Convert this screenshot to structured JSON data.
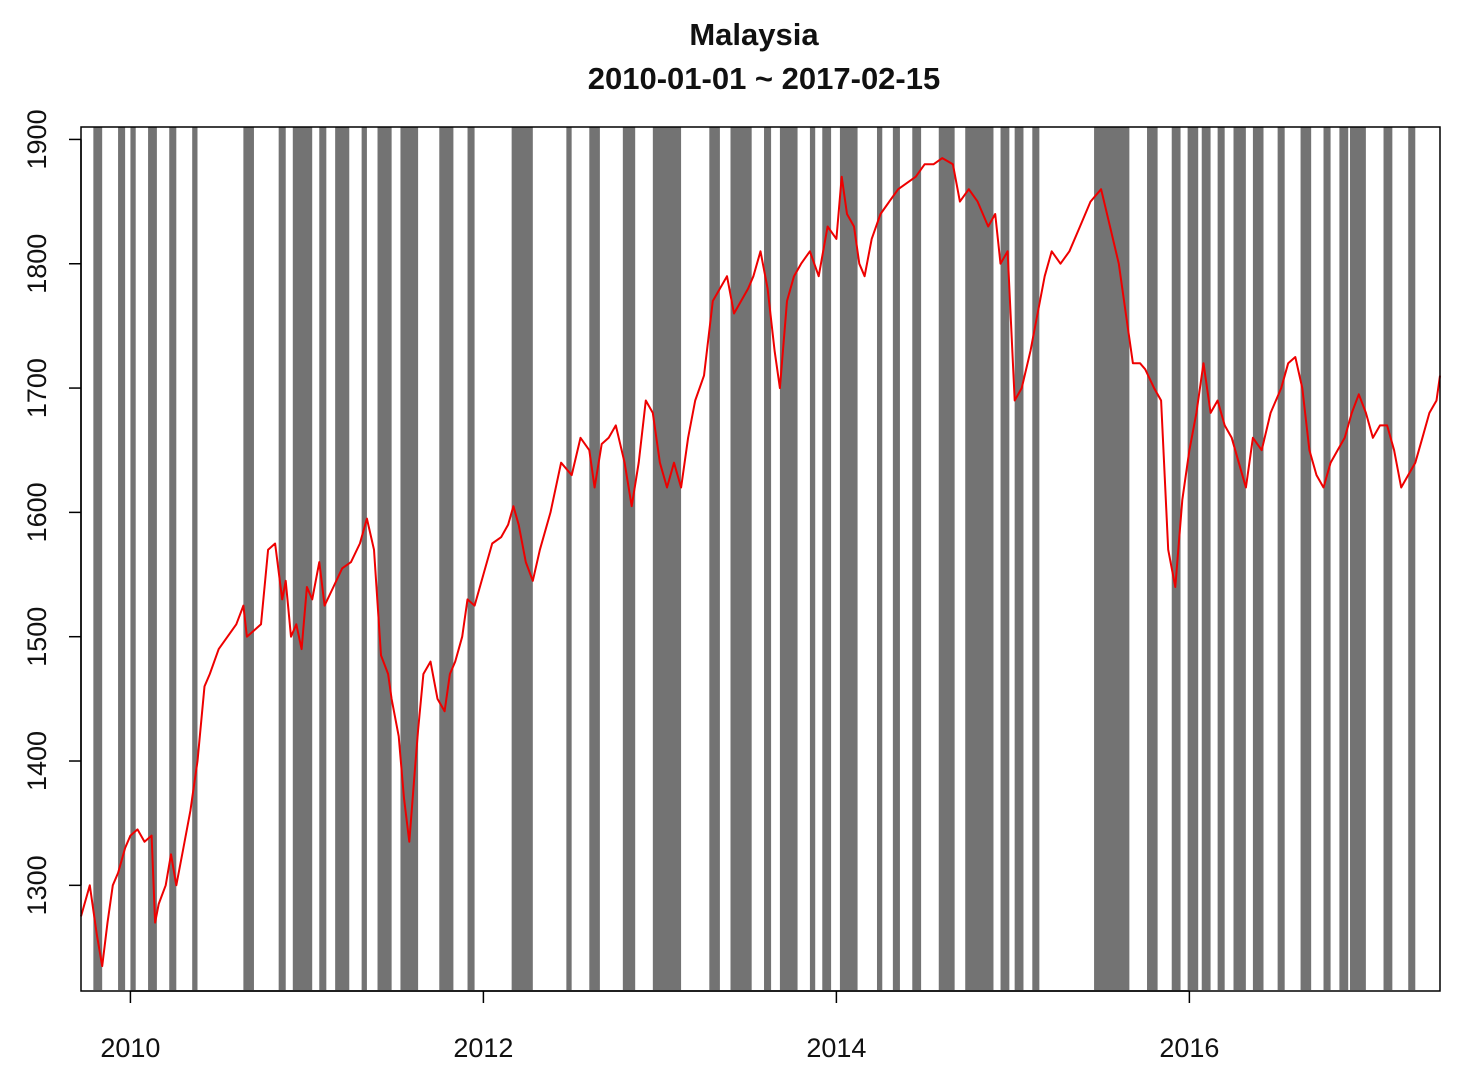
{
  "chart_data": {
    "type": "line",
    "title": "Malaysia",
    "subtitle": "2010-01-01 ~ 2017-02-15",
    "xlabel": "",
    "ylabel": "",
    "x_ticks": [
      "2010",
      "2012",
      "2014",
      "2016"
    ],
    "x_tick_values": [
      2010.0,
      2012.0,
      2014.0,
      2016.0
    ],
    "y_ticks": [
      1300,
      1400,
      1500,
      1600,
      1700,
      1800,
      1900
    ],
    "xlim": [
      2009.72,
      2017.42
    ],
    "ylim": [
      1215,
      1910
    ],
    "grid": false,
    "legend": "none",
    "line_color": "#ee0000",
    "band_color": "#737373",
    "shaded_periods": [
      [
        2009.79,
        2009.84
      ],
      [
        2009.93,
        2009.97
      ],
      [
        2010.0,
        2010.03
      ],
      [
        2010.1,
        2010.15
      ],
      [
        2010.22,
        2010.26
      ],
      [
        2010.35,
        2010.38
      ],
      [
        2010.64,
        2010.7
      ],
      [
        2010.84,
        2010.88
      ],
      [
        2010.92,
        2011.03
      ],
      [
        2011.07,
        2011.11
      ],
      [
        2011.16,
        2011.24
      ],
      [
        2011.31,
        2011.34
      ],
      [
        2011.4,
        2011.48
      ],
      [
        2011.53,
        2011.63
      ],
      [
        2011.75,
        2011.83
      ],
      [
        2011.91,
        2011.95
      ],
      [
        2012.16,
        2012.28
      ],
      [
        2012.47,
        2012.5
      ],
      [
        2012.6,
        2012.66
      ],
      [
        2012.79,
        2012.86
      ],
      [
        2012.96,
        2013.12
      ],
      [
        2013.28,
        2013.34
      ],
      [
        2013.4,
        2013.52
      ],
      [
        2013.59,
        2013.63
      ],
      [
        2013.68,
        2013.78
      ],
      [
        2013.85,
        2013.88
      ],
      [
        2013.92,
        2013.97
      ],
      [
        2014.02,
        2014.12
      ],
      [
        2014.23,
        2014.26
      ],
      [
        2014.32,
        2014.36
      ],
      [
        2014.43,
        2014.48
      ],
      [
        2014.58,
        2014.67
      ],
      [
        2014.73,
        2014.89
      ],
      [
        2014.93,
        2014.98
      ],
      [
        2015.01,
        2015.06
      ],
      [
        2015.11,
        2015.15
      ],
      [
        2015.46,
        2015.66
      ],
      [
        2015.76,
        2015.82
      ],
      [
        2015.9,
        2015.95
      ],
      [
        2015.99,
        2016.05
      ],
      [
        2016.07,
        2016.12
      ],
      [
        2016.16,
        2016.2
      ],
      [
        2016.25,
        2016.32
      ],
      [
        2016.36,
        2016.42
      ],
      [
        2016.5,
        2016.54
      ],
      [
        2016.63,
        2016.69
      ],
      [
        2016.76,
        2016.8
      ],
      [
        2016.85,
        2016.9
      ],
      [
        2016.91,
        2017.0
      ],
      [
        2017.1,
        2017.15
      ],
      [
        2017.24,
        2017.28
      ]
    ],
    "series": [
      {
        "x": [
          2009.72,
          2009.77,
          2009.81,
          2009.84,
          2009.87,
          2009.9,
          2009.93,
          2009.97,
          2010.0,
          2010.04,
          2010.08,
          2010.12,
          2010.14,
          2010.16,
          2010.2,
          2010.23,
          2010.26,
          2010.3,
          2010.34,
          2010.38,
          2010.42,
          2010.45,
          2010.5,
          2010.55,
          2010.6,
          2010.64,
          2010.66,
          2010.7,
          2010.74,
          2010.78,
          2010.82,
          2010.86,
          2010.88,
          2010.91,
          2010.94,
          2010.97,
          2011.0,
          2011.03,
          2011.07,
          2011.1,
          2011.15,
          2011.2,
          2011.25,
          2011.3,
          2011.34,
          2011.38,
          2011.42,
          2011.46,
          2011.48,
          2011.52,
          2011.55,
          2011.58,
          2011.61,
          2011.63,
          2011.66,
          2011.7,
          2011.74,
          2011.78,
          2011.81,
          2011.84,
          2011.88,
          2011.91,
          2011.95,
          2012.0,
          2012.05,
          2012.1,
          2012.14,
          2012.17,
          2012.2,
          2012.24,
          2012.28,
          2012.32,
          2012.38,
          2012.44,
          2012.5,
          2012.55,
          2012.6,
          2012.63,
          2012.67,
          2012.71,
          2012.75,
          2012.8,
          2012.84,
          2012.88,
          2012.92,
          2012.96,
          2013.0,
          2013.04,
          2013.08,
          2013.12,
          2013.16,
          2013.2,
          2013.25,
          2013.3,
          2013.34,
          2013.38,
          2013.42,
          2013.46,
          2013.5,
          2013.53,
          2013.57,
          2013.61,
          2013.65,
          2013.68,
          2013.72,
          2013.76,
          2013.8,
          2013.85,
          2013.9,
          2013.95,
          2014.0,
          2014.03,
          2014.06,
          2014.1,
          2014.13,
          2014.16,
          2014.2,
          2014.25,
          2014.3,
          2014.35,
          2014.4,
          2014.45,
          2014.5,
          2014.55,
          2014.6,
          2014.66,
          2014.7,
          2014.75,
          2014.8,
          2014.86,
          2014.9,
          2014.93,
          2014.97,
          2015.01,
          2015.05,
          2015.1,
          2015.14,
          2015.18,
          2015.22,
          2015.27,
          2015.32,
          2015.38,
          2015.44,
          2015.5,
          2015.55,
          2015.6,
          2015.64,
          2015.68,
          2015.72,
          2015.75,
          2015.8,
          2015.84,
          2015.88,
          2015.92,
          2015.96,
          2016.0,
          2016.04,
          2016.08,
          2016.12,
          2016.16,
          2016.2,
          2016.24,
          2016.28,
          2016.32,
          2016.36,
          2016.41,
          2016.46,
          2016.52,
          2016.56,
          2016.6,
          2016.64,
          2016.68,
          2016.72,
          2016.76,
          2016.8,
          2016.84,
          2016.88,
          2016.92,
          2016.96,
          2017.0,
          2017.04,
          2017.08,
          2017.12,
          2017.16,
          2017.2,
          2017.24,
          2017.28,
          2017.32,
          2017.36,
          2017.4,
          2017.42
        ],
        "values": [
          1275,
          1300,
          1260,
          1235,
          1270,
          1300,
          1310,
          1330,
          1340,
          1345,
          1335,
          1340,
          1270,
          1285,
          1300,
          1325,
          1300,
          1330,
          1360,
          1400,
          1460,
          1470,
          1490,
          1500,
          1510,
          1525,
          1500,
          1505,
          1510,
          1570,
          1575,
          1530,
          1545,
          1500,
          1510,
          1490,
          1540,
          1530,
          1560,
          1525,
          1540,
          1555,
          1560,
          1575,
          1595,
          1570,
          1485,
          1470,
          1450,
          1420,
          1370,
          1335,
          1390,
          1425,
          1470,
          1480,
          1450,
          1440,
          1470,
          1480,
          1500,
          1530,
          1525,
          1550,
          1575,
          1580,
          1590,
          1605,
          1590,
          1560,
          1545,
          1570,
          1600,
          1640,
          1630,
          1660,
          1650,
          1620,
          1655,
          1660,
          1670,
          1640,
          1605,
          1640,
          1690,
          1680,
          1640,
          1620,
          1640,
          1620,
          1660,
          1690,
          1710,
          1770,
          1780,
          1790,
          1760,
          1770,
          1780,
          1790,
          1810,
          1780,
          1730,
          1700,
          1770,
          1790,
          1800,
          1810,
          1790,
          1830,
          1820,
          1870,
          1840,
          1830,
          1800,
          1790,
          1820,
          1840,
          1850,
          1860,
          1865,
          1870,
          1880,
          1880,
          1885,
          1880,
          1850,
          1860,
          1850,
          1830,
          1840,
          1800,
          1810,
          1690,
          1700,
          1730,
          1760,
          1790,
          1810,
          1800,
          1810,
          1830,
          1850,
          1860,
          1830,
          1800,
          1760,
          1720,
          1720,
          1715,
          1700,
          1690,
          1570,
          1540,
          1610,
          1650,
          1680,
          1720,
          1680,
          1690,
          1670,
          1660,
          1640,
          1620,
          1660,
          1650,
          1680,
          1700,
          1720,
          1725,
          1700,
          1650,
          1630,
          1620,
          1640,
          1650,
          1660,
          1680,
          1695,
          1680,
          1660,
          1670,
          1670,
          1650,
          1620,
          1630,
          1640,
          1660,
          1680,
          1690,
          1710
        ]
      }
    ]
  }
}
